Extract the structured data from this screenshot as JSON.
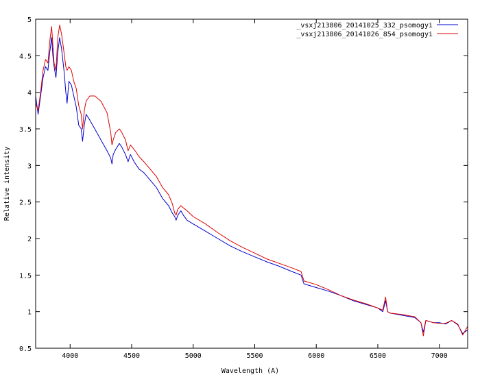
{
  "chart_data": {
    "type": "line",
    "title": "",
    "xlabel": "Wavelength (A)",
    "ylabel": "Relative intensity",
    "xlim": [
      3720,
      7230
    ],
    "ylim": [
      0.5,
      5
    ],
    "grid": false,
    "legend_position": "top-right",
    "x_ticks": [
      4000,
      4500,
      5000,
      5500,
      6000,
      6500,
      7000
    ],
    "y_ticks": [
      0.5,
      1,
      1.5,
      2,
      2.5,
      3,
      3.5,
      4,
      4.5,
      5
    ],
    "x_tick_labels": [
      "4000",
      "4500",
      "5000",
      "5500",
      "6000",
      "6500",
      "7000"
    ],
    "y_tick_labels": [
      "0.5",
      "1",
      "1.5",
      "2",
      "2.5",
      "3",
      "3.5",
      "4",
      "4.5",
      "5"
    ],
    "series": [
      {
        "name": "_vsxj213806_20141025_332_psomogyi",
        "color": "#0000cc",
        "x": [
          3720,
          3740,
          3760,
          3780,
          3800,
          3820,
          3835,
          3850,
          3860,
          3870,
          3885,
          3900,
          3915,
          3930,
          3950,
          3965,
          3975,
          3990,
          4010,
          4030,
          4050,
          4070,
          4090,
          4101,
          4115,
          4130,
          4160,
          4200,
          4250,
          4300,
          4330,
          4340,
          4350,
          4370,
          4400,
          4420,
          4450,
          4471,
          4490,
          4520,
          4560,
          4600,
          4650,
          4700,
          4750,
          4800,
          4830,
          4850,
          4861,
          4875,
          4900,
          4920,
          4950,
          5000,
          5100,
          5200,
          5300,
          5400,
          5500,
          5600,
          5700,
          5800,
          5876,
          5900,
          6000,
          6100,
          6200,
          6300,
          6400,
          6500,
          6540,
          6563,
          6580,
          6600,
          6700,
          6800,
          6850,
          6870,
          6890,
          6950,
          7000,
          7050,
          7100,
          7150,
          7190,
          7230
        ],
        "values": [
          3.95,
          3.7,
          3.95,
          4.2,
          4.35,
          4.3,
          4.55,
          4.75,
          4.5,
          4.35,
          4.2,
          4.55,
          4.75,
          4.6,
          4.3,
          4.0,
          3.85,
          4.15,
          4.1,
          3.95,
          3.8,
          3.55,
          3.5,
          3.33,
          3.55,
          3.7,
          3.62,
          3.5,
          3.35,
          3.2,
          3.1,
          3.02,
          3.15,
          3.22,
          3.3,
          3.25,
          3.15,
          3.05,
          3.15,
          3.05,
          2.95,
          2.9,
          2.8,
          2.7,
          2.55,
          2.45,
          2.35,
          2.3,
          2.25,
          2.32,
          2.38,
          2.32,
          2.25,
          2.2,
          2.1,
          2.0,
          1.9,
          1.82,
          1.75,
          1.68,
          1.62,
          1.55,
          1.5,
          1.38,
          1.33,
          1.28,
          1.22,
          1.15,
          1.1,
          1.05,
          1.0,
          1.15,
          1.0,
          0.98,
          0.95,
          0.92,
          0.85,
          0.72,
          0.88,
          0.85,
          0.85,
          0.83,
          0.88,
          0.82,
          0.7,
          0.75
        ]
      },
      {
        "name": "_vsxj213806_20141026_854_psomogyi",
        "color": "#dd0000",
        "x": [
          3720,
          3740,
          3760,
          3780,
          3800,
          3820,
          3835,
          3850,
          3860,
          3870,
          3885,
          3900,
          3915,
          3930,
          3950,
          3965,
          3975,
          3990,
          4010,
          4030,
          4050,
          4070,
          4090,
          4101,
          4115,
          4130,
          4160,
          4200,
          4250,
          4300,
          4330,
          4340,
          4350,
          4370,
          4400,
          4420,
          4450,
          4471,
          4490,
          4520,
          4560,
          4600,
          4650,
          4700,
          4750,
          4800,
          4830,
          4850,
          4861,
          4875,
          4900,
          4920,
          4950,
          5000,
          5100,
          5200,
          5300,
          5400,
          5500,
          5600,
          5700,
          5800,
          5876,
          5900,
          6000,
          6100,
          6200,
          6300,
          6400,
          6500,
          6540,
          6563,
          6580,
          6600,
          6700,
          6800,
          6850,
          6870,
          6890,
          6950,
          7000,
          7050,
          7100,
          7150,
          7190,
          7230
        ],
        "values": [
          3.85,
          3.75,
          4.0,
          4.3,
          4.45,
          4.4,
          4.7,
          4.9,
          4.65,
          4.4,
          4.3,
          4.75,
          4.92,
          4.8,
          4.55,
          4.35,
          4.3,
          4.35,
          4.3,
          4.15,
          4.05,
          3.82,
          3.7,
          3.5,
          3.75,
          3.88,
          3.95,
          3.95,
          3.88,
          3.72,
          3.45,
          3.28,
          3.35,
          3.45,
          3.5,
          3.45,
          3.35,
          3.2,
          3.28,
          3.22,
          3.12,
          3.05,
          2.95,
          2.85,
          2.7,
          2.6,
          2.48,
          2.35,
          2.32,
          2.4,
          2.45,
          2.42,
          2.38,
          2.3,
          2.2,
          2.08,
          1.97,
          1.88,
          1.8,
          1.72,
          1.66,
          1.6,
          1.55,
          1.42,
          1.37,
          1.3,
          1.22,
          1.16,
          1.11,
          1.05,
          1.02,
          1.2,
          1.0,
          0.98,
          0.96,
          0.93,
          0.85,
          0.67,
          0.88,
          0.85,
          0.84,
          0.84,
          0.88,
          0.83,
          0.68,
          0.8
        ]
      }
    ]
  }
}
